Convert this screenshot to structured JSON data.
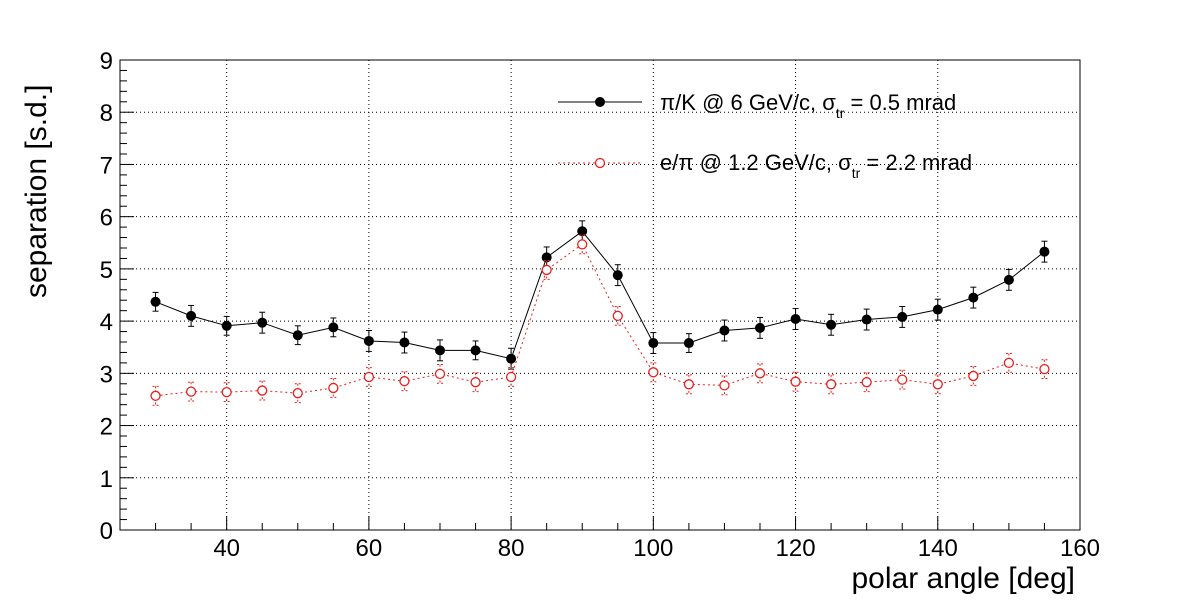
{
  "chart_data": {
    "type": "scatter",
    "xlabel": "polar angle [deg]",
    "ylabel": "separation [s.d.]",
    "xlim": [
      25,
      160
    ],
    "ylim": [
      0,
      9
    ],
    "x_ticks": [
      "40",
      "60",
      "80",
      "100",
      "120",
      "140",
      "160"
    ],
    "y_ticks": [
      "0",
      "1",
      "2",
      "3",
      "4",
      "5",
      "6",
      "7",
      "8",
      "9"
    ],
    "grid": true,
    "legend_position": "top-right",
    "x": [
      30,
      35,
      40,
      45,
      50,
      55,
      60,
      65,
      70,
      75,
      80,
      85,
      90,
      95,
      100,
      105,
      110,
      115,
      120,
      125,
      130,
      135,
      140,
      145,
      150,
      155
    ],
    "series": [
      {
        "legend": {
          "prefix": "π/K @ 6 GeV/c, σ",
          "sub": "tr",
          "suffix": " = 0.5 mrad"
        },
        "color": "#000000",
        "marker": "filled-circle",
        "line": "solid",
        "values": [
          4.37,
          4.1,
          3.91,
          3.97,
          3.73,
          3.88,
          3.62,
          3.59,
          3.44,
          3.44,
          3.28,
          5.22,
          5.72,
          4.88,
          3.58,
          3.58,
          3.82,
          3.87,
          4.04,
          3.93,
          4.03,
          4.08,
          4.22,
          4.45,
          4.79,
          5.33
        ],
        "errors": [
          0.18,
          0.2,
          0.18,
          0.2,
          0.18,
          0.18,
          0.2,
          0.2,
          0.2,
          0.18,
          0.2,
          0.2,
          0.2,
          0.2,
          0.2,
          0.18,
          0.2,
          0.2,
          0.2,
          0.2,
          0.2,
          0.2,
          0.2,
          0.2,
          0.2,
          0.2
        ]
      },
      {
        "legend": {
          "prefix": "e/π @ 1.2 GeV/c, σ",
          "sub": "tr",
          "suffix": " = 2.2 mrad"
        },
        "color": "#e8201e",
        "marker": "open-circle",
        "line": "dashed",
        "values": [
          2.57,
          2.65,
          2.64,
          2.67,
          2.62,
          2.72,
          2.93,
          2.85,
          2.99,
          2.83,
          2.93,
          4.98,
          5.47,
          4.1,
          3.02,
          2.79,
          2.77,
          3.0,
          2.84,
          2.79,
          2.83,
          2.88,
          2.79,
          2.95,
          3.2,
          3.08
        ]
      }
    ]
  }
}
